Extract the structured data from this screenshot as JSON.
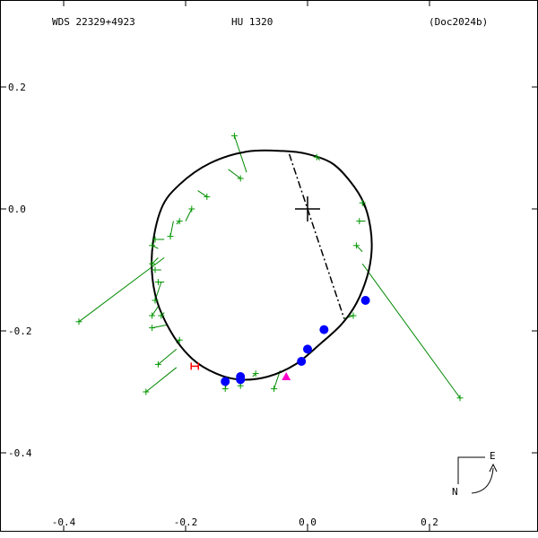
{
  "header": {
    "left": "WDS 22329+4923",
    "center": "HU 1320",
    "right": "(Doc2024b)"
  },
  "compass": {
    "east_label": "E",
    "north_label": "N"
  },
  "colors": {
    "orbit": "#000000",
    "residual": "#008800",
    "measure": "#009900",
    "filled": "#0000ff",
    "predicted": "#ff00cc",
    "periastron": "#ff0000"
  },
  "chart_data": {
    "type": "scatter",
    "title": "",
    "xlabel": "",
    "ylabel": "",
    "xlim": [
      -0.4,
      0.35
    ],
    "ylim": [
      -0.52,
      0.3
    ],
    "x_ticks": [
      -0.4,
      -0.2,
      0.0,
      0.2
    ],
    "x_tick_labels": [
      "-0.4",
      "-0.2",
      "0.0",
      "0.2"
    ],
    "y_ticks": [
      0.2,
      0.0,
      -0.2,
      -0.4
    ],
    "y_tick_labels": [
      "0.2",
      "0.0",
      "-0.2",
      "-0.4"
    ],
    "primary_star": {
      "x": 0.0,
      "y": 0.0
    },
    "orbit_ellipse": [
      [
        -0.04,
        0.095
      ],
      [
        0.0,
        0.09
      ],
      [
        0.04,
        0.075
      ],
      [
        0.07,
        0.045
      ],
      [
        0.092,
        0.01
      ],
      [
        0.103,
        -0.03
      ],
      [
        0.105,
        -0.07
      ],
      [
        0.098,
        -0.11
      ],
      [
        0.08,
        -0.155
      ],
      [
        0.055,
        -0.19
      ],
      [
        0.02,
        -0.222
      ],
      [
        -0.02,
        -0.255
      ],
      [
        -0.065,
        -0.275
      ],
      [
        -0.11,
        -0.28
      ],
      [
        -0.15,
        -0.27
      ],
      [
        -0.19,
        -0.245
      ],
      [
        -0.225,
        -0.2
      ],
      [
        -0.25,
        -0.14
      ],
      [
        -0.255,
        -0.07
      ],
      [
        -0.24,
        0.0
      ],
      [
        -0.21,
        0.04
      ],
      [
        -0.16,
        0.075
      ],
      [
        -0.1,
        0.094
      ],
      [
        -0.04,
        0.095
      ]
    ],
    "line_of_apsides": [
      [
        -0.03,
        0.09
      ],
      [
        0.06,
        -0.18
      ]
    ],
    "measures": [
      {
        "x": -0.12,
        "y": 0.12,
        "ox": -0.1,
        "oy": 0.06
      },
      {
        "x": -0.11,
        "y": 0.05,
        "ox": -0.13,
        "oy": 0.065
      },
      {
        "x": -0.165,
        "y": 0.02,
        "ox": -0.18,
        "oy": 0.03
      },
      {
        "x": -0.19,
        "y": 0.0,
        "ox": -0.2,
        "oy": -0.02
      },
      {
        "x": -0.21,
        "y": -0.02,
        "ox": -0.215,
        "oy": -0.025
      },
      {
        "x": -0.225,
        "y": -0.045,
        "ox": -0.22,
        "oy": -0.02
      },
      {
        "x": -0.25,
        "y": -0.05,
        "ox": -0.235,
        "oy": -0.05
      },
      {
        "x": -0.255,
        "y": -0.06,
        "ox": -0.245,
        "oy": -0.065
      },
      {
        "x": -0.255,
        "y": -0.09,
        "ox": -0.245,
        "oy": -0.08
      },
      {
        "x": -0.25,
        "y": -0.1,
        "ox": -0.24,
        "oy": -0.1
      },
      {
        "x": -0.245,
        "y": -0.12,
        "ox": -0.235,
        "oy": -0.12
      },
      {
        "x": -0.25,
        "y": -0.15,
        "ox": -0.24,
        "oy": -0.12
      },
      {
        "x": -0.255,
        "y": -0.175,
        "ox": -0.245,
        "oy": -0.16
      },
      {
        "x": -0.255,
        "y": -0.195,
        "ox": -0.23,
        "oy": -0.19
      },
      {
        "x": -0.24,
        "y": -0.175,
        "ox": -0.235,
        "oy": -0.17
      },
      {
        "x": -0.21,
        "y": -0.215,
        "ox": -0.215,
        "oy": -0.22
      },
      {
        "x": -0.245,
        "y": -0.255,
        "ox": -0.215,
        "oy": -0.23
      },
      {
        "x": -0.265,
        "y": -0.3,
        "ox": -0.215,
        "oy": -0.26
      },
      {
        "x": -0.375,
        "y": -0.185,
        "ox": -0.235,
        "oy": -0.08
      },
      {
        "x": -0.135,
        "y": -0.295,
        "ox": -0.13,
        "oy": -0.275
      },
      {
        "x": -0.11,
        "y": -0.29,
        "ox": -0.11,
        "oy": -0.275
      },
      {
        "x": -0.085,
        "y": -0.27,
        "ox": -0.09,
        "oy": -0.275
      },
      {
        "x": -0.055,
        "y": -0.295,
        "ox": -0.045,
        "oy": -0.265
      },
      {
        "x": 0.015,
        "y": 0.085,
        "ox": 0.02,
        "oy": 0.08
      },
      {
        "x": 0.09,
        "y": 0.01,
        "ox": 0.095,
        "oy": 0.0
      },
      {
        "x": 0.085,
        "y": -0.02,
        "ox": 0.095,
        "oy": -0.02
      },
      {
        "x": 0.08,
        "y": -0.06,
        "ox": 0.09,
        "oy": -0.07
      },
      {
        "x": 0.075,
        "y": -0.175,
        "ox": 0.06,
        "oy": -0.18
      },
      {
        "x": 0.25,
        "y": -0.31,
        "ox": 0.09,
        "oy": -0.09
      }
    ],
    "filled_points": [
      {
        "x": 0.095,
        "y": -0.15
      },
      {
        "x": 0.027,
        "y": -0.198
      },
      {
        "x": 0.0,
        "y": -0.23
      },
      {
        "x": -0.01,
        "y": -0.25
      },
      {
        "x": -0.11,
        "y": -0.275
      },
      {
        "x": -0.11,
        "y": -0.28
      },
      {
        "x": -0.135,
        "y": -0.283
      }
    ],
    "predicted": {
      "x": -0.035,
      "y": -0.275
    },
    "periastron": {
      "x": -0.185,
      "y": -0.258
    }
  }
}
